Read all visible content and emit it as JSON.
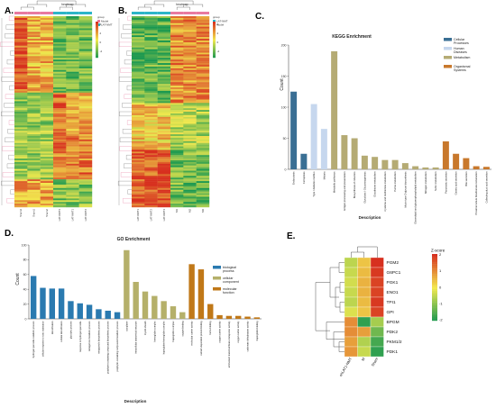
{
  "panel_labels": [
    "A.",
    "B.",
    "C.",
    "D.",
    "E."
  ],
  "colors": {
    "heat_red": "#d7301f",
    "heat_yellow": "#f2e94e",
    "heat_green": "#1a9850",
    "bio_blue": "#2a7ab0",
    "cell_khaki": "#b5b06a",
    "mol_orange": "#c07818",
    "kegg_cell": "#3a6f94",
    "kegg_human": "#c6d7ee",
    "kegg_metab": "#b5ab74",
    "kegg_org": "#c8782c",
    "pink": "#e87aa0",
    "cyan": "#2cb5c8"
  },
  "heatmap_a": {
    "title": "heatmap",
    "legend_title": "group",
    "legend_items": [
      "Model",
      "LAT-NMT"
    ],
    "scale_ticks": [
      "4",
      "2",
      "0",
      "-2"
    ],
    "sample_labels": [
      "Sham3",
      "Sham1",
      "Sham2",
      "LAT-NMT3",
      "LAT-NMT1",
      "LAT-NMT2"
    ]
  },
  "heatmap_b": {
    "title": "heatmap",
    "legend_title": "group",
    "legend_items": [
      "LAT-NMT",
      "Model"
    ],
    "scale_ticks": [
      "4",
      "2",
      "0",
      "-2"
    ],
    "sample_labels": [
      "LAT-NMT1",
      "LAT-NMT2",
      "LAT-NMT3",
      "M1",
      "M2",
      "M3"
    ]
  },
  "chart_data": [
    {
      "type": "bar",
      "title": "KEGG Enrichment",
      "xlabel": "Description",
      "ylabel": "Count",
      "ylim": [
        0,
        200
      ],
      "yticks": [
        0,
        50,
        100,
        150,
        200
      ],
      "legend": [
        "Cellular Processes",
        "Human Diseases",
        "Metabolism",
        "Organismal Systems"
      ],
      "legend_placement": "top-right",
      "categories": [
        "Endocytosis",
        "Ferroptosis",
        "Type I diabetes mellitus",
        "Malaria",
        "Metabolic pathways",
        "Antigen processing and presentation",
        "Biosynthesis of cofactors",
        "Glycolysis / Gluconeogenesis",
        "Glutathione metabolism",
        "Cysteine and methionine metabolism",
        "Purine metabolism",
        "Mucin type O-glycan biosynthesis",
        "Glycerolipid and glycerophospholipid metabolism",
        "Nitrogen metabolism",
        "Sulfur metabolism",
        "Pancreatic secretion",
        "Gastric acid secretion",
        "Bile secretion",
        "Proximal tubule bicarbonate reclamation",
        "Collecting duct acid secretion"
      ],
      "values": [
        125,
        25,
        105,
        65,
        190,
        55,
        50,
        22,
        20,
        15,
        15,
        10,
        5,
        3,
        3,
        45,
        25,
        18,
        5,
        4
      ],
      "groups": [
        "Cellular Processes",
        "Cellular Processes",
        "Human Diseases",
        "Human Diseases",
        "Metabolism",
        "Metabolism",
        "Metabolism",
        "Metabolism",
        "Metabolism",
        "Metabolism",
        "Metabolism",
        "Metabolism",
        "Metabolism",
        "Metabolism",
        "Metabolism",
        "Organismal Systems",
        "Organismal Systems",
        "Organismal Systems",
        "Organismal Systems",
        "Organismal Systems"
      ]
    },
    {
      "type": "bar",
      "title": "GO Enrichment",
      "xlabel": "Description",
      "ylabel": "Count",
      "ylim": [
        0,
        100
      ],
      "yticks": [
        0,
        20,
        40,
        60,
        80,
        100
      ],
      "legend": [
        "biological process",
        "cellular component",
        "molecular function"
      ],
      "legend_placement": "top-right",
      "categories": [
        "hydrogen peroxide catabolic process",
        "cellular response to toxic substance",
        "detoxification",
        "cellular detoxification",
        "glycolytic process",
        "response to hydrogen peroxide",
        "tetrapyrrole metabolic process",
        "tetrapyrrole biosynthetic process",
        "porphyrin-containing compound biosynthetic process",
        "porphyrin-containing compound metabolic process",
        "cytoplasm",
        "intracellular anatomical structure",
        "myelin sheath",
        "hemoglobin complex",
        "haptoglobin-hemoglobin complex",
        "haptoglobin complex",
        "oxygen binding",
        "molecular carrier activity",
        "calcium-dependent protein binding",
        "heme binding",
        "oxygen carrier activity",
        "ammonium transmembrane transporter activity",
        "oxygen carrier activity",
        "carbonate dehydratase activity",
        "haptoglobin binding"
      ],
      "values": [
        58,
        42,
        41,
        41,
        24,
        21,
        19,
        13,
        11,
        9,
        93,
        50,
        37,
        31,
        24,
        17,
        9,
        74,
        67,
        20,
        5,
        4,
        4,
        3,
        2
      ],
      "groups": [
        "biological process",
        "biological process",
        "biological process",
        "biological process",
        "biological process",
        "biological process",
        "biological process",
        "biological process",
        "biological process",
        "biological process",
        "cellular component",
        "cellular component",
        "cellular component",
        "cellular component",
        "cellular component",
        "cellular component",
        "cellular component",
        "molecular function",
        "molecular function",
        "molecular function",
        "molecular function",
        "molecular function",
        "molecular function",
        "molecular function",
        "molecular function"
      ]
    },
    {
      "type": "heatmap",
      "legend_title": "Z-score",
      "scale_ticks": [
        "2",
        "1",
        "0",
        "-1",
        "-2"
      ],
      "columns": [
        "shLAT1-NMT",
        "M",
        "Sham"
      ],
      "rows": [
        "PGM2",
        "G6PC1",
        "PGK1",
        "ENO1",
        "TPI1",
        "GPI",
        "BPGM",
        "PDK2",
        "PKM1/2",
        "PDK1"
      ],
      "values": [
        [
          -0.5,
          0.4,
          2.0
        ],
        [
          -0.4,
          0.5,
          1.9
        ],
        [
          -0.3,
          0.6,
          1.8
        ],
        [
          -0.4,
          0.6,
          1.8
        ],
        [
          -0.5,
          0.5,
          1.9
        ],
        [
          -0.2,
          0.4,
          1.8
        ],
        [
          1.0,
          -1.8,
          -0.7
        ],
        [
          1.0,
          0.8,
          -1.2
        ],
        [
          0.8,
          -0.6,
          -1.6
        ],
        [
          0.9,
          -0.4,
          -1.8
        ]
      ]
    }
  ]
}
